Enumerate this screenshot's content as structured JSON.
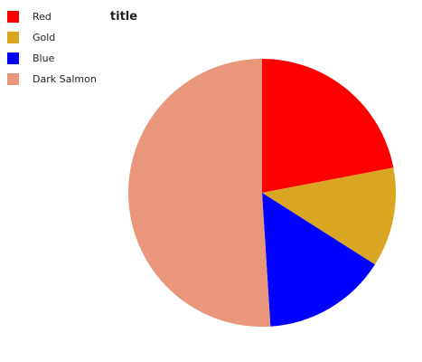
{
  "chart_data": {
    "type": "pie",
    "title": "title",
    "legend_position": "top-left",
    "categories": [
      "Red",
      "Gold",
      "Blue",
      "Dark Salmon"
    ],
    "values": [
      22,
      12,
      15,
      51
    ],
    "colors": [
      "#ff0000",
      "#daa520",
      "#0000ff",
      "#e9967a"
    ],
    "start_angle_deg": 0,
    "direction": "clockwise"
  }
}
